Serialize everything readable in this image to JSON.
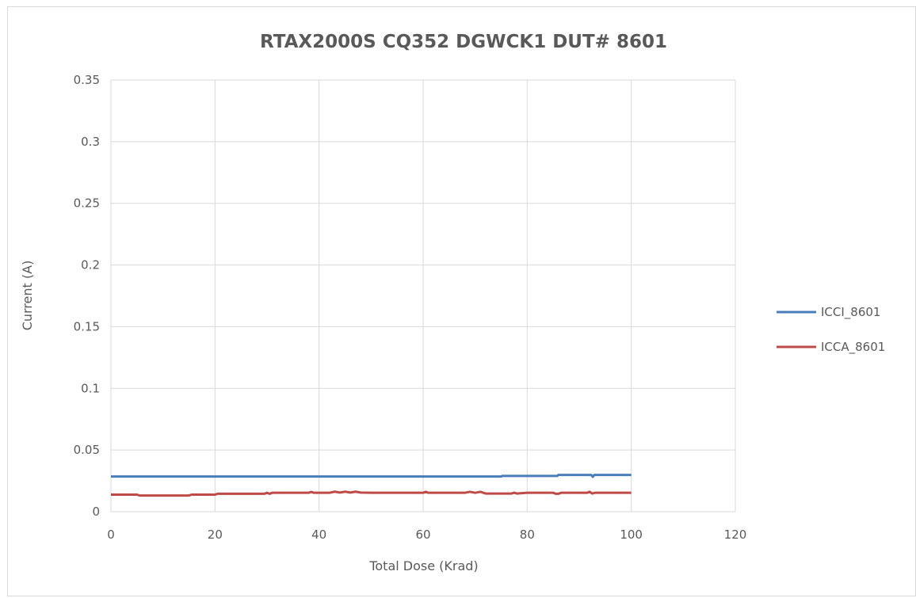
{
  "chart_data": {
    "type": "line",
    "title": "RTAX2000S CQ352 DGWCK1 DUT# 8601",
    "xlabel": "Total Dose (Krad)",
    "ylabel": "Current (A)",
    "xlim": [
      0,
      120
    ],
    "ylim": [
      0,
      0.35
    ],
    "x_ticks": [
      "0",
      "20",
      "40",
      "60",
      "80",
      "100",
      "120"
    ],
    "y_ticks": [
      "0",
      "0.05",
      "0.1",
      "0.15",
      "0.2",
      "0.25",
      "0.3",
      "0.35"
    ],
    "x_tick_values": [
      0,
      20,
      40,
      60,
      80,
      100,
      120
    ],
    "y_tick_values": [
      0,
      0.05,
      0.1,
      0.15,
      0.2,
      0.25,
      0.3,
      0.35
    ],
    "grid": true,
    "legend_position": "right",
    "series": [
      {
        "name": "ICCI_8601",
        "color": "#4a7ebb",
        "x": [
          0,
          10,
          20,
          30,
          40,
          50,
          60,
          70,
          75,
          75.2,
          80,
          85.8,
          86,
          90,
          92.3,
          92.6,
          92.9,
          95,
          100
        ],
        "y": [
          0.0285,
          0.0285,
          0.0285,
          0.0285,
          0.0285,
          0.0285,
          0.0285,
          0.0285,
          0.0285,
          0.029,
          0.029,
          0.029,
          0.0298,
          0.0298,
          0.0298,
          0.0282,
          0.0298,
          0.0298,
          0.0298
        ]
      },
      {
        "name": "ICCA_8601",
        "color": "#be4b48",
        "x": [
          0,
          5,
          5.5,
          10,
          15,
          15.5,
          20,
          20.5,
          25,
          29.5,
          30,
          30.5,
          31,
          35,
          38,
          38.5,
          39,
          40,
          42,
          43,
          44,
          45,
          46,
          47,
          48,
          50,
          55,
          60,
          60.5,
          61,
          65,
          68,
          69,
          70,
          71,
          72,
          73,
          75,
          77,
          77.5,
          78,
          80,
          85,
          85.5,
          86,
          86.5,
          90,
          91.5,
          92,
          92.5,
          93,
          95,
          100
        ],
        "y": [
          0.0138,
          0.0138,
          0.0131,
          0.0131,
          0.0131,
          0.0138,
          0.0138,
          0.0145,
          0.0145,
          0.0145,
          0.0153,
          0.0145,
          0.0153,
          0.0153,
          0.0153,
          0.016,
          0.0153,
          0.0153,
          0.0153,
          0.0162,
          0.0155,
          0.0162,
          0.0155,
          0.0162,
          0.0155,
          0.0153,
          0.0153,
          0.0153,
          0.0161,
          0.0153,
          0.0153,
          0.0153,
          0.0161,
          0.0153,
          0.0161,
          0.0147,
          0.0147,
          0.0147,
          0.0147,
          0.0154,
          0.0147,
          0.0153,
          0.0153,
          0.0145,
          0.0145,
          0.0153,
          0.0153,
          0.0153,
          0.0161,
          0.0147,
          0.0153,
          0.0153,
          0.0153
        ]
      }
    ]
  }
}
